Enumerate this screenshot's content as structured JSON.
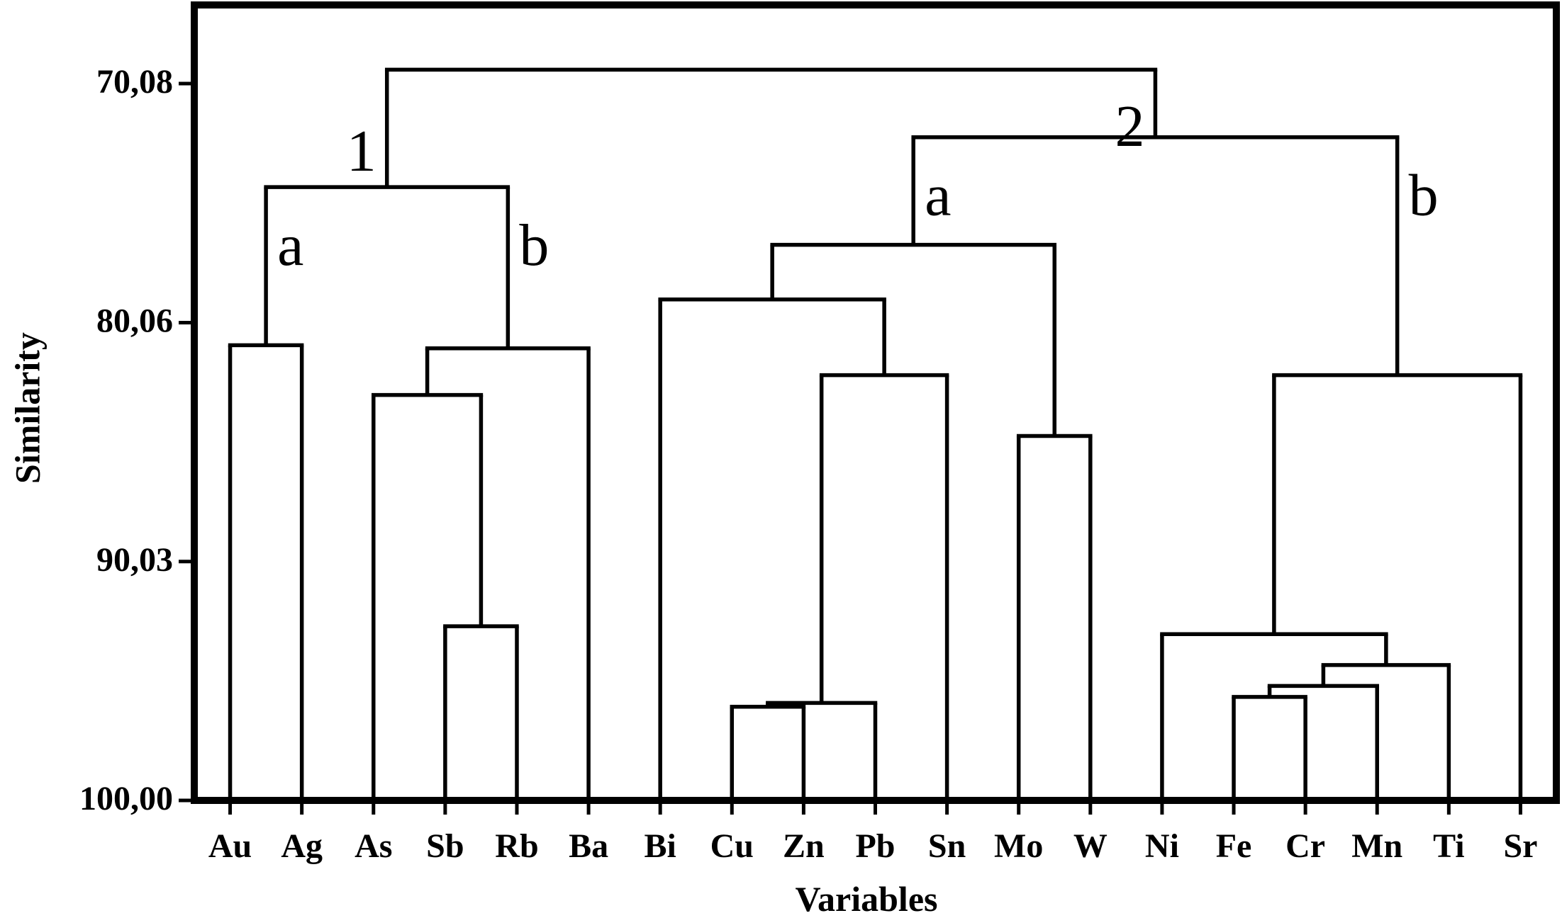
{
  "chart_data": {
    "type": "dendrogram",
    "ylabel": "Similarity",
    "xlabel": "Variables",
    "ylim": [
      100,
      66.8
    ],
    "yticks": [
      {
        "value": 70.08,
        "label": "70,08"
      },
      {
        "value": 80.06,
        "label": "80,06"
      },
      {
        "value": 90.03,
        "label": "90,03"
      },
      {
        "value": 100,
        "label": "100,00"
      }
    ],
    "color": "#000000",
    "tree": {
      "height": 69.5,
      "children": [
        {
          "label": "1",
          "height": 74.4,
          "children": [
            {
              "label": "a",
              "height": 81.0,
              "children": [
                {
                  "label": "Au"
                },
                {
                  "label": "Ag"
                }
              ]
            },
            {
              "label": "b",
              "height": 81.13,
              "children": [
                {
                  "height": 83.08,
                  "children": [
                    {
                      "label": "As"
                    },
                    {
                      "height": 92.73,
                      "children": [
                        {
                          "label": "Sb"
                        },
                        {
                          "label": "Rb"
                        }
                      ]
                    }
                  ]
                },
                {
                  "label": "Ba"
                }
              ]
            }
          ]
        },
        {
          "label": "2",
          "height": 72.32,
          "children": [
            {
              "label": "a",
              "height": 76.81,
              "children": [
                {
                  "height": 79.09,
                  "children": [
                    {
                      "label": "Bi"
                    },
                    {
                      "height": 82.25,
                      "children": [
                        {
                          "height": 95.93,
                          "children": [
                            {
                              "height": 96.09,
                              "children": [
                                {
                                  "label": "Cu"
                                },
                                {
                                  "label": "Zn"
                                }
                              ]
                            },
                            {
                              "label": "Pb"
                            }
                          ]
                        },
                        {
                          "label": "Sn"
                        }
                      ]
                    }
                  ]
                },
                {
                  "height": 84.79,
                  "children": [
                    {
                      "label": "Mo"
                    },
                    {
                      "label": "W"
                    }
                  ]
                }
              ]
            },
            {
              "label": "b",
              "height": 82.25,
              "children": [
                {
                  "height": 93.06,
                  "children": [
                    {
                      "label": "Ni"
                    },
                    {
                      "height": 94.35,
                      "children": [
                        {
                          "height": 95.22,
                          "children": [
                            {
                              "height": 95.68,
                              "children": [
                                {
                                  "label": "Fe"
                                },
                                {
                                  "label": "Cr"
                                }
                              ]
                            },
                            {
                              "label": "Mn"
                            }
                          ]
                        },
                        {
                          "label": "Ti"
                        }
                      ]
                    }
                  ]
                },
                {
                  "label": "Sr"
                }
              ]
            }
          ]
        }
      ]
    }
  }
}
